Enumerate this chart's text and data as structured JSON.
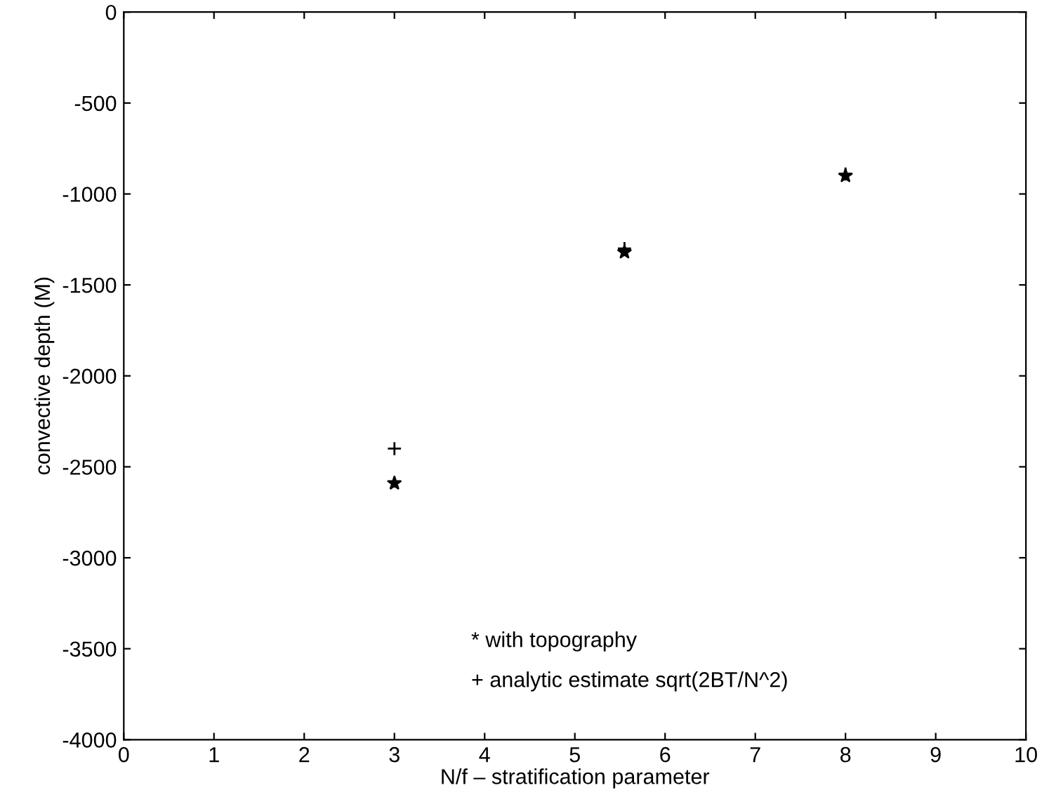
{
  "chart_data": {
    "type": "scatter",
    "xlabel": "N/f – stratification parameter",
    "ylabel": "convective depth (M)",
    "x": [
      3,
      5.55,
      8
    ],
    "series": [
      {
        "color": "#000000",
        "marker": "star",
        "values": [
          -2590,
          -1320,
          -900
        ]
      },
      {
        "color": "#000000",
        "marker": "cross",
        "values": [
          -2400,
          -1300,
          -890
        ]
      }
    ],
    "xlim": [
      0,
      10
    ],
    "xticks": [
      0,
      1,
      2,
      3,
      4,
      5,
      6,
      7,
      8,
      9,
      10
    ],
    "ylim": [
      -4000,
      0
    ],
    "yticks": [
      -4000,
      -3500,
      -3000,
      -2500,
      -2000,
      -1500,
      -1000,
      -500,
      0
    ],
    "grid": false,
    "annotations": [
      "* with topography",
      "+ analytic estimate sqrt(2BT/N^2)"
    ]
  }
}
